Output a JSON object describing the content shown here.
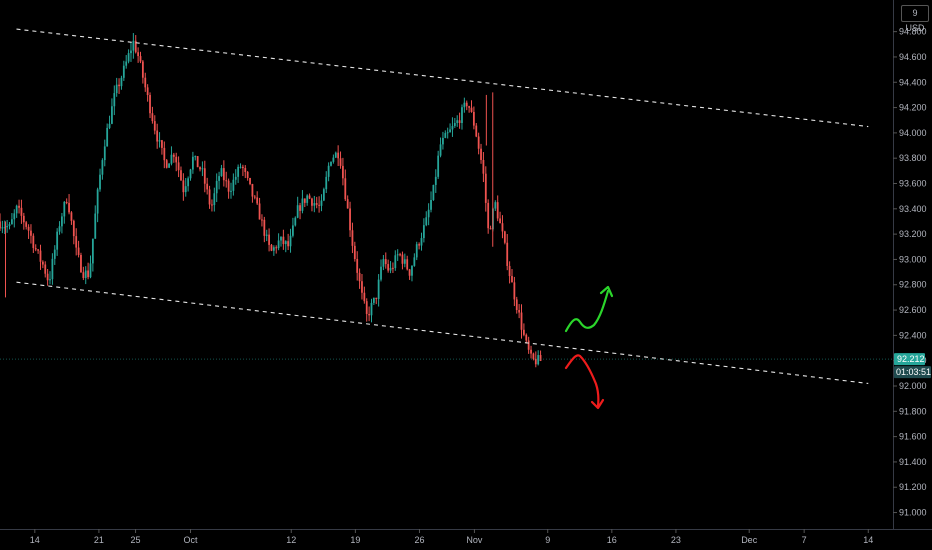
{
  "chart_data": {
    "type": "candlestick",
    "title": "",
    "currency": "USD",
    "scale_indicator": "9",
    "y_ticks": [
      "94.800",
      "94.600",
      "94.400",
      "94.200",
      "94.000",
      "93.800",
      "93.600",
      "93.400",
      "93.200",
      "93.000",
      "92.800",
      "92.600",
      "92.400",
      "92.200",
      "92.000",
      "91.800",
      "91.600",
      "91.400",
      "91.200",
      "91.000"
    ],
    "y_tick_values": [
      94.8,
      94.6,
      94.4,
      94.2,
      94.0,
      93.8,
      93.6,
      93.4,
      93.2,
      93.0,
      92.8,
      92.6,
      92.4,
      92.2,
      92.0,
      91.8,
      91.6,
      91.4,
      91.2,
      91.0
    ],
    "ylim": [
      90.87,
      95.05
    ],
    "x_ticks": [
      {
        "label": "14",
        "day": 14
      },
      {
        "label": "21",
        "day": 21
      },
      {
        "label": "25",
        "day": 25
      },
      {
        "label": "Oct",
        "day": 31
      },
      {
        "label": "12",
        "day": 42
      },
      {
        "label": "19",
        "day": 49
      },
      {
        "label": "26",
        "day": 56
      },
      {
        "label": "Nov",
        "day": 62
      },
      {
        "label": "9",
        "day": 70
      },
      {
        "label": "16",
        "day": 77
      },
      {
        "label": "23",
        "day": 84
      },
      {
        "label": "Dec",
        "day": 92
      },
      {
        "label": "7",
        "day": 98
      },
      {
        "label": "14",
        "day": 105
      }
    ],
    "x_range_days": [
      10.2,
      107.7
    ],
    "last_price": "92.212",
    "last_price_value": 92.212,
    "countdown": "01:03:51",
    "up_color": "#26a69a",
    "down_color": "#ef5350",
    "trendlines": [
      {
        "name": "channel-upper",
        "from": [
          12.0,
          94.82
        ],
        "to": [
          105.0,
          94.05
        ]
      },
      {
        "name": "channel-lower",
        "from": [
          12.0,
          92.82
        ],
        "to": [
          105.0,
          92.02
        ]
      }
    ],
    "path_anchors": [
      [
        10.2,
        93.3
      ],
      [
        11.5,
        93.25
      ],
      [
        12.3,
        93.4
      ],
      [
        13.5,
        93.25
      ],
      [
        14.5,
        93.05
      ],
      [
        15.2,
        92.95
      ],
      [
        15.8,
        92.82
      ],
      [
        17.0,
        93.3
      ],
      [
        17.8,
        93.5
      ],
      [
        18.8,
        93.05
      ],
      [
        19.5,
        92.9
      ],
      [
        20.2,
        92.88
      ],
      [
        21.0,
        93.45
      ],
      [
        21.8,
        93.9
      ],
      [
        23.0,
        94.3
      ],
      [
        24.0,
        94.5
      ],
      [
        25.0,
        94.72
      ],
      [
        25.5,
        94.62
      ],
      [
        26.5,
        94.3
      ],
      [
        27.5,
        94.0
      ],
      [
        28.5,
        93.75
      ],
      [
        29.5,
        93.85
      ],
      [
        30.5,
        93.55
      ],
      [
        31.5,
        93.8
      ],
      [
        32.5,
        93.7
      ],
      [
        33.5,
        93.4
      ],
      [
        34.5,
        93.7
      ],
      [
        35.5,
        93.55
      ],
      [
        36.8,
        93.75
      ],
      [
        37.8,
        93.55
      ],
      [
        38.8,
        93.35
      ],
      [
        40.0,
        93.05
      ],
      [
        41.0,
        93.15
      ],
      [
        42.0,
        93.1
      ],
      [
        43.0,
        93.4
      ],
      [
        44.0,
        93.5
      ],
      [
        45.5,
        93.4
      ],
      [
        46.5,
        93.8
      ],
      [
        47.5,
        93.85
      ],
      [
        48.2,
        93.5
      ],
      [
        49.0,
        93.1
      ],
      [
        50.0,
        92.7
      ],
      [
        50.5,
        92.55
      ],
      [
        51.5,
        92.7
      ],
      [
        52.3,
        93.0
      ],
      [
        53.0,
        92.9
      ],
      [
        54.0,
        93.05
      ],
      [
        55.2,
        92.9
      ],
      [
        56.0,
        93.1
      ],
      [
        57.0,
        93.3
      ],
      [
        57.8,
        93.55
      ],
      [
        58.5,
        93.9
      ],
      [
        59.5,
        94.0
      ],
      [
        60.5,
        94.1
      ],
      [
        61.5,
        94.25
      ],
      [
        62.3,
        94.05
      ],
      [
        63.2,
        93.7
      ],
      [
        63.8,
        93.2
      ],
      [
        64.5,
        93.45
      ],
      [
        65.3,
        93.2
      ],
      [
        66.2,
        92.85
      ],
      [
        67.0,
        92.6
      ],
      [
        67.8,
        92.35
      ],
      [
        68.5,
        92.2
      ],
      [
        69.3,
        92.2
      ]
    ],
    "candles_visual_only": true
  },
  "annotations": {
    "green_arrow": "bullish-scenario-arrow",
    "red_arrow": "bearish-scenario-arrow"
  }
}
